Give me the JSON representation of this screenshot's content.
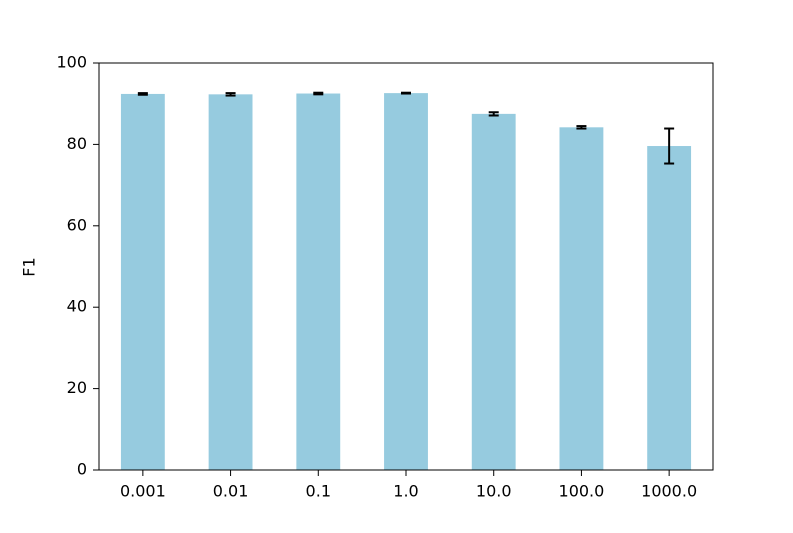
{
  "chart_data": {
    "type": "bar",
    "ylabel": "F1",
    "categories": [
      "0.001",
      "0.01",
      "0.1",
      "1.0",
      "10.0",
      "100.0",
      "1000.0"
    ],
    "values": [
      92.4,
      92.3,
      92.5,
      92.6,
      87.5,
      84.2,
      79.6
    ],
    "errors": [
      0.2,
      0.3,
      0.2,
      0.1,
      0.4,
      0.3,
      4.3
    ],
    "color": "#96cbdf",
    "error_color": "#000000",
    "ylim": [
      0,
      100
    ],
    "yticks": [
      0,
      20,
      40,
      60,
      80,
      100
    ],
    "grid": false
  }
}
